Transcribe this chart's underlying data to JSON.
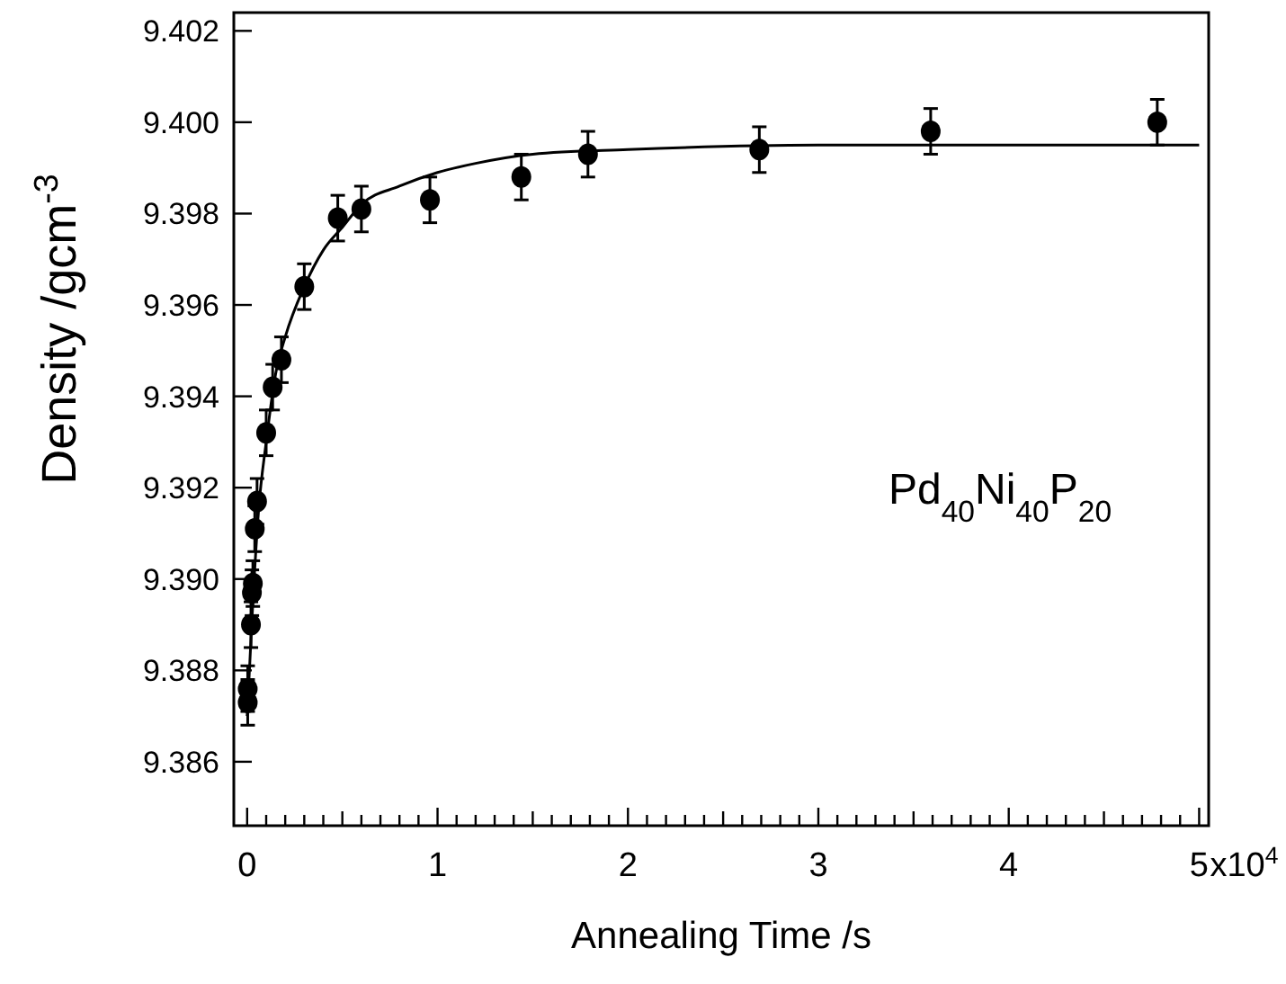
{
  "chart_data": {
    "type": "scatter",
    "xlabel": "Annealing Time  /s",
    "ylabel": "Density  /gcm$^{-3}$",
    "annotations": [
      "Pd$_{40}$Ni$_{40}$P$_{20}$",
      "x10$^{4}$"
    ],
    "xlim": [
      -0.07,
      5.05
    ],
    "ylim": [
      9.3846,
      9.4024
    ],
    "xticks": [
      0,
      {
        "value": 0.1,
        "label": null
      },
      {
        "value": 0.2,
        "label": null
      },
      {
        "value": 0.3,
        "label": null
      },
      {
        "value": 0.4,
        "label": null
      },
      {
        "value": 0.5,
        "label": null
      },
      {
        "value": 0.6,
        "label": null
      },
      {
        "value": 0.7,
        "label": null
      },
      {
        "value": 0.8,
        "label": null
      },
      {
        "value": 0.9,
        "label": null
      },
      1,
      {
        "value": 1.1,
        "label": null
      },
      {
        "value": 1.2,
        "label": null
      },
      {
        "value": 1.3,
        "label": null
      },
      {
        "value": 1.4,
        "label": null
      },
      {
        "value": 1.5,
        "label": null
      },
      {
        "value": 1.6,
        "label": null
      },
      {
        "value": 1.7,
        "label": null
      },
      {
        "value": 1.8,
        "label": null
      },
      {
        "value": 1.9,
        "label": null
      },
      2,
      {
        "value": 2.1,
        "label": null
      },
      {
        "value": 2.2,
        "label": null
      },
      {
        "value": 2.3,
        "label": null
      },
      {
        "value": 2.4,
        "label": null
      },
      {
        "value": 2.5,
        "label": null
      },
      {
        "value": 2.6,
        "label": null
      },
      {
        "value": 2.7,
        "label": null
      },
      {
        "value": 2.8,
        "label": null
      },
      {
        "value": 2.9,
        "label": null
      },
      3,
      {
        "value": 3.1,
        "label": null
      },
      {
        "value": 3.2,
        "label": null
      },
      {
        "value": 3.3,
        "label": null
      },
      {
        "value": 3.4,
        "label": null
      },
      {
        "value": 3.5,
        "label": null
      },
      {
        "value": 3.6,
        "label": null
      },
      {
        "value": 3.7,
        "label": null
      },
      {
        "value": 3.8,
        "label": null
      },
      {
        "value": 3.9,
        "label": null
      },
      4,
      {
        "value": 4.1,
        "label": null
      },
      {
        "value": 4.2,
        "label": null
      },
      {
        "value": 4.3,
        "label": null
      },
      {
        "value": 4.4,
        "label": null
      },
      {
        "value": 4.5,
        "label": null
      },
      {
        "value": 4.6,
        "label": null
      },
      {
        "value": 4.7,
        "label": null
      },
      {
        "value": 4.8,
        "label": null
      },
      {
        "value": 4.9,
        "label": null
      },
      5
    ],
    "yticks": [
      {
        "value": 9.386,
        "label": "9.386"
      },
      {
        "value": 9.388,
        "label": "9.388"
      },
      {
        "value": 9.39,
        "label": "9.390"
      },
      {
        "value": 9.392,
        "label": "9.392"
      },
      {
        "value": 9.394,
        "label": "9.394"
      },
      {
        "value": 9.396,
        "label": "9.396"
      },
      {
        "value": 9.398,
        "label": "9.398"
      },
      {
        "value": 9.4,
        "label": "9.400"
      },
      {
        "value": 9.402,
        "label": "9.402"
      }
    ],
    "grid": false,
    "marker": "circle",
    "series": [
      {
        "color": "#000000",
        "x": [
          0.003,
          0.003,
          0.02,
          0.025,
          0.03,
          0.04,
          0.052,
          0.1,
          0.134,
          0.18,
          0.3,
          0.476,
          0.6,
          0.96,
          1.44,
          1.79,
          2.69,
          3.59,
          4.78
        ],
        "values": [
          9.3873,
          9.3876,
          9.389,
          9.3897,
          9.3899,
          9.3911,
          9.3917,
          9.3932,
          9.3942,
          9.3948,
          9.3964,
          9.3979,
          9.3981,
          9.3983,
          9.3988,
          9.3993,
          9.3994,
          9.3998,
          9.4
        ],
        "errors": [
          0.0005,
          0.0005,
          0.0005,
          0.0005,
          0.0005,
          0.0005,
          0.0005,
          0.0005,
          0.0005,
          0.0005,
          0.0005,
          0.0005,
          0.0005,
          0.0005,
          0.0005,
          0.0005,
          0.0005,
          0.0005,
          0.0005
        ]
      },
      {
        "type": "line",
        "color": "#000000",
        "line_style": "solid",
        "marker": "none",
        "x": [
          0,
          0.03,
          0.06,
          0.1,
          0.15,
          0.2,
          0.3,
          0.4,
          0.5,
          0.6,
          0.8,
          1.0,
          1.2,
          1.5,
          2.0,
          3.0,
          5.0
        ],
        "values": [
          9.387,
          9.3895,
          9.3915,
          9.393,
          9.3945,
          9.3953,
          9.3964,
          9.3972,
          9.3977,
          9.3982,
          9.3986,
          9.3989,
          9.3991,
          9.3993,
          9.3994,
          9.3995,
          9.3995
        ]
      }
    ]
  }
}
